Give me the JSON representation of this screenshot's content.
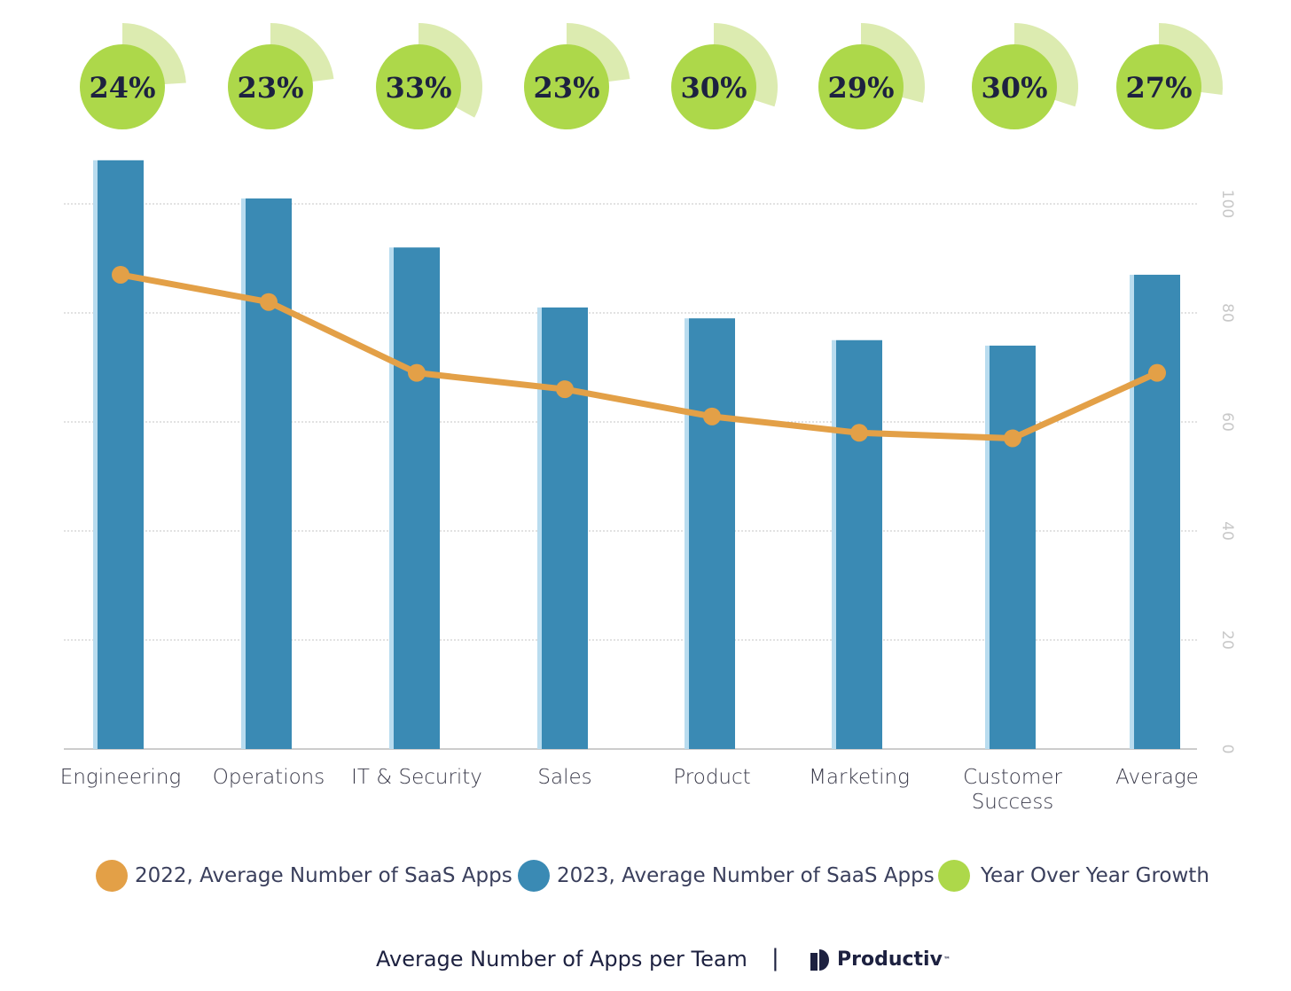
{
  "chart_data": {
    "type": "bar",
    "categories": [
      "Engineering",
      "Operations",
      "IT & Security",
      "Sales",
      "Product",
      "Marketing",
      "Customer Success",
      "Average"
    ],
    "series": [
      {
        "name": "2023, Average Number of SaaS Apps",
        "type": "bar",
        "color": "#3a8ab4",
        "values": [
          108,
          101,
          92,
          81,
          79,
          75,
          74,
          87
        ]
      },
      {
        "name": "2022, Average Number of SaaS Apps",
        "type": "line",
        "color": "#e3a047",
        "values": [
          87,
          82,
          69,
          66,
          61,
          58,
          57,
          69
        ]
      },
      {
        "name": "Year Over Year Growth",
        "type": "indicator",
        "color": "#add84a",
        "labels": [
          "24%",
          "23%",
          "33%",
          "23%",
          "30%",
          "29%",
          "30%",
          "27%"
        ],
        "values": [
          24,
          23,
          33,
          23,
          30,
          29,
          30,
          27
        ]
      }
    ],
    "y_ticks": [
      "0",
      "20",
      "40",
      "60",
      "80",
      "100"
    ],
    "ylim": [
      0,
      110
    ],
    "grid": true,
    "y_axis_position": "right",
    "legend_position": "bottom"
  },
  "legend": [
    {
      "label": "2022, Average Number of SaaS Apps",
      "color": "#e3a047"
    },
    {
      "label": "2023, Average Number of SaaS Apps",
      "color": "#3a8ab4"
    },
    {
      "label": "Year Over Year Growth",
      "color": "#add84a"
    }
  ],
  "footer": {
    "title": "Average Number of Apps per Team",
    "separator": "|",
    "brand": "Productiv",
    "brand_tm": "™"
  }
}
